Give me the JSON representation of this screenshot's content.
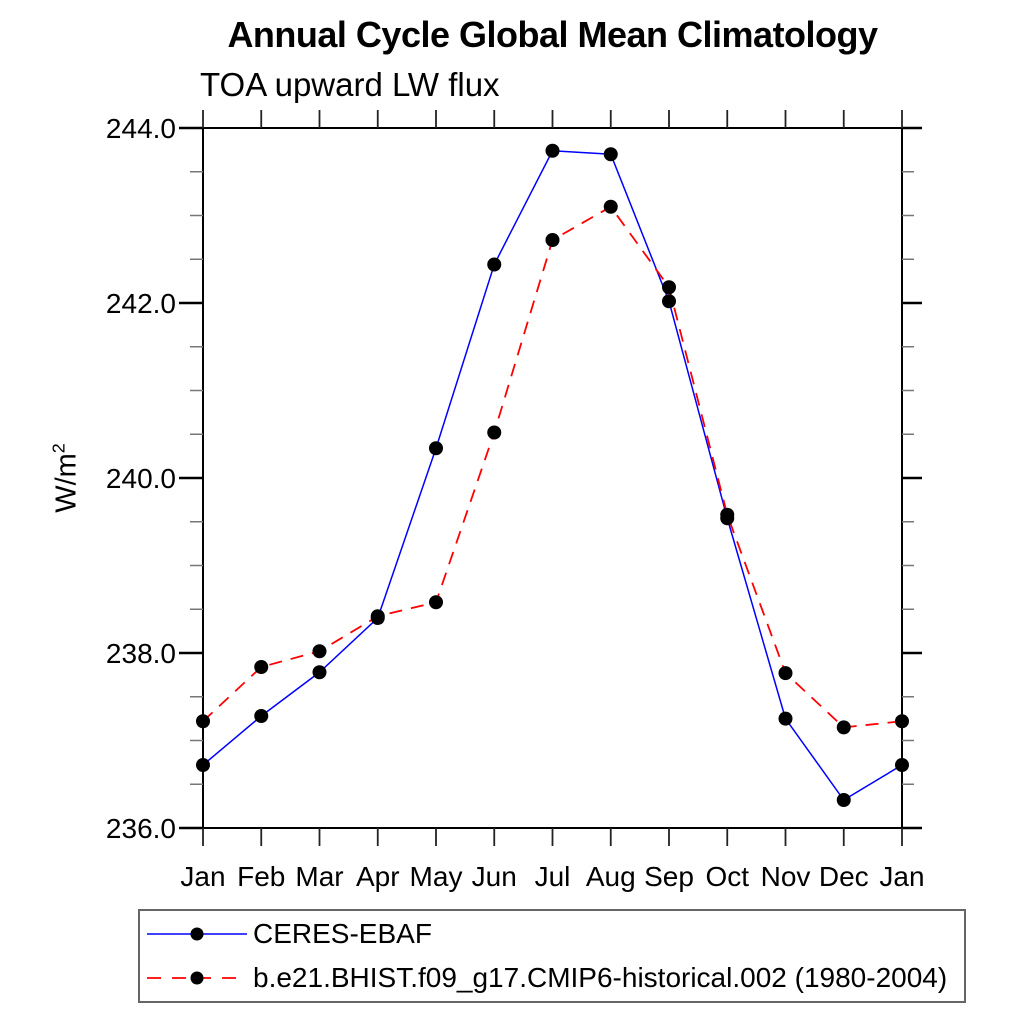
{
  "page": {
    "background": "#ffffff"
  },
  "header": {
    "title": "Annual Cycle Global Mean Climatology",
    "subtitle": "TOA upward LW flux"
  },
  "axes": {
    "y_unit_base": "W/m",
    "y_unit_sup": "2"
  },
  "colors": {
    "axis": "#000000",
    "minor_tick": "#777777",
    "month_tick": "#222222",
    "marker": "#000000",
    "series1": "#0000ff",
    "series2": "#ff0000"
  },
  "chart_data": {
    "type": "line",
    "title": "Annual Cycle Global Mean Climatology",
    "subtitle": "TOA upward LW flux",
    "xlabel": "",
    "ylabel": "W/m^2",
    "categories": [
      "Jan",
      "Feb",
      "Mar",
      "Apr",
      "May",
      "Jun",
      "Jul",
      "Aug",
      "Sep",
      "Oct",
      "Nov",
      "Dec",
      "Jan"
    ],
    "ylim": [
      236.0,
      244.0
    ],
    "ytick_values": [
      236,
      238,
      240,
      242,
      244
    ],
    "ytick_labels": [
      "236.0",
      "238.0",
      "240.0",
      "242.0",
      "244.0"
    ],
    "ytick_minor_step": 0.5,
    "grid": false,
    "legend_position": "bottom-left-box",
    "series": [
      {
        "name": "CERES-EBAF",
        "color": "#0000ff",
        "line_style": "solid",
        "marker": "black-circle",
        "values": [
          236.72,
          237.28,
          237.78,
          238.4,
          240.34,
          242.44,
          243.74,
          243.7,
          242.02,
          239.54,
          237.25,
          236.32,
          236.72
        ]
      },
      {
        "name": "b.e21.BHIST.f09_g17.CMIP6-historical.002 (1980-2004)",
        "color": "#ff0000",
        "line_style": "dashed",
        "marker": "black-circle",
        "values": [
          237.22,
          237.84,
          238.02,
          238.42,
          238.58,
          240.52,
          242.72,
          243.1,
          242.18,
          239.58,
          237.77,
          237.15,
          237.22
        ]
      }
    ]
  }
}
